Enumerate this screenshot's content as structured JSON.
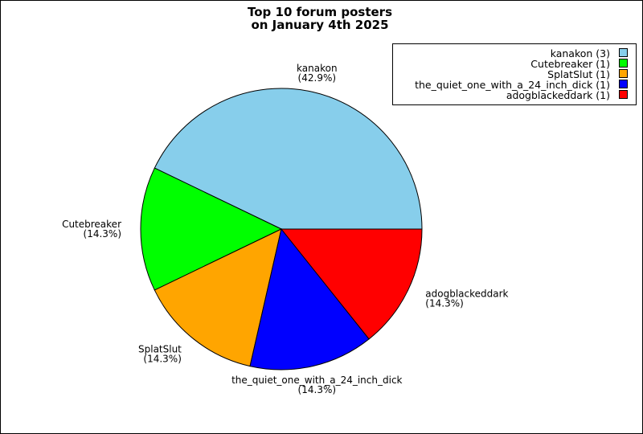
{
  "chart_data": {
    "type": "pie",
    "title": [
      "Top 10 forum posters",
      "on January 4th 2025"
    ],
    "slices": [
      {
        "label": "kanakon",
        "value": 3,
        "percent": "(42.9%)",
        "legend": "kanakon (3)",
        "color": "#87CEEB"
      },
      {
        "label": "Cutebreaker",
        "value": 1,
        "percent": "(14.3%)",
        "legend": "Cutebreaker (1)",
        "color": "#00FF00"
      },
      {
        "label": "SplatSlut",
        "value": 1,
        "percent": "(14.3%)",
        "legend": "SplatSlut (1)",
        "color": "#FFA500"
      },
      {
        "label": "the_quiet_one_with_a_24_inch_dick",
        "value": 1,
        "percent": "(14.3%)",
        "legend": "the_quiet_one_with_a_24_inch_dick (1)",
        "color": "#0000FF"
      },
      {
        "label": "adogblackeddark",
        "value": 1,
        "percent": "(14.3%)",
        "legend": "adogblackeddark (1)",
        "color": "#FF0000"
      }
    ],
    "start_direction": "right",
    "rotation": "counterclockwise",
    "legend_position": "top-right"
  }
}
